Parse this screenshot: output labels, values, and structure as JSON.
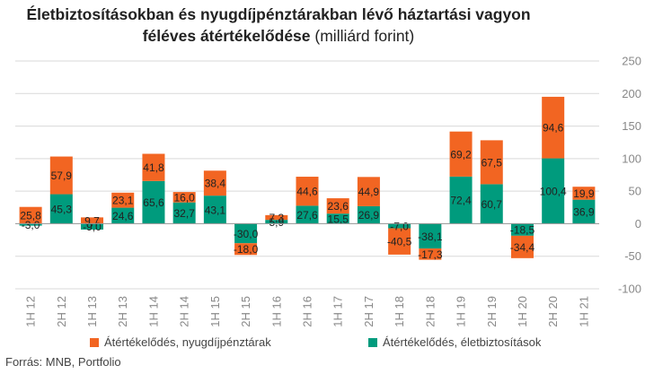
{
  "title": {
    "bold": "Életbiztosításokban és nyugdíjpénztárakban lévő háztartási vagyon féléves átértékelődése",
    "normal": "(milliárd forint)"
  },
  "source": "Forrás: MNB, Portfolio",
  "colors": {
    "orange": "#f26522",
    "teal": "#009b7d",
    "grid": "#d9d9d9",
    "axis": "#999999"
  },
  "chart_data": {
    "type": "bar",
    "stacked": true,
    "categories": [
      "1H 12",
      "2H 12",
      "1H 13",
      "2H 13",
      "1H 14",
      "2H 14",
      "1H 15",
      "2H 15",
      "1H 16",
      "2H 16",
      "1H 17",
      "2H 17",
      "1H 18",
      "2H 18",
      "1H 19",
      "2H 19",
      "1H 20",
      "2H 20",
      "1H 21"
    ],
    "series": [
      {
        "name": "Átértékelődés, életbiztosítások",
        "color": "#009b7d",
        "values": [
          -3.0,
          45.3,
          -9.0,
          24.6,
          65.6,
          32.7,
          43.1,
          -30.0,
          5.9,
          27.6,
          15.5,
          26.9,
          -7.0,
          -38.1,
          72.4,
          60.7,
          -18.5,
          100.4,
          36.9
        ],
        "labels": [
          "-3,0",
          "45,3",
          "-9,0",
          "24,6",
          "65,6",
          "32,7",
          "43,1",
          "-30,0",
          "5,9",
          "27,6",
          "15,5",
          "26,9",
          "-7,0",
          "-38,1",
          "72,4",
          "60,7",
          "-18,5",
          "100,4",
          "36,9"
        ]
      },
      {
        "name": "Átértékelődés, nyugdíjpénztárak",
        "color": "#f26522",
        "values": [
          25.8,
          57.9,
          9.7,
          23.1,
          41.8,
          16.0,
          38.4,
          -18.0,
          7.3,
          44.6,
          23.6,
          44.9,
          -40.5,
          -17.3,
          69.2,
          67.5,
          -34.4,
          94.6,
          19.9
        ],
        "labels": [
          "25,8",
          "57,9",
          "9,7",
          "23,1",
          "41,8",
          "16,0",
          "38,4",
          "-18,0",
          "7,3",
          "44,6",
          "23,6",
          "44,9",
          "-40,5",
          "-17,3",
          "69,2",
          "67,5",
          "-34,4",
          "94,6",
          "19,9"
        ]
      }
    ],
    "ylim": [
      -100,
      250
    ],
    "yticks": [
      -100,
      -50,
      0,
      50,
      100,
      150,
      200,
      250
    ],
    "grid": true,
    "legend_position": "bottom"
  }
}
